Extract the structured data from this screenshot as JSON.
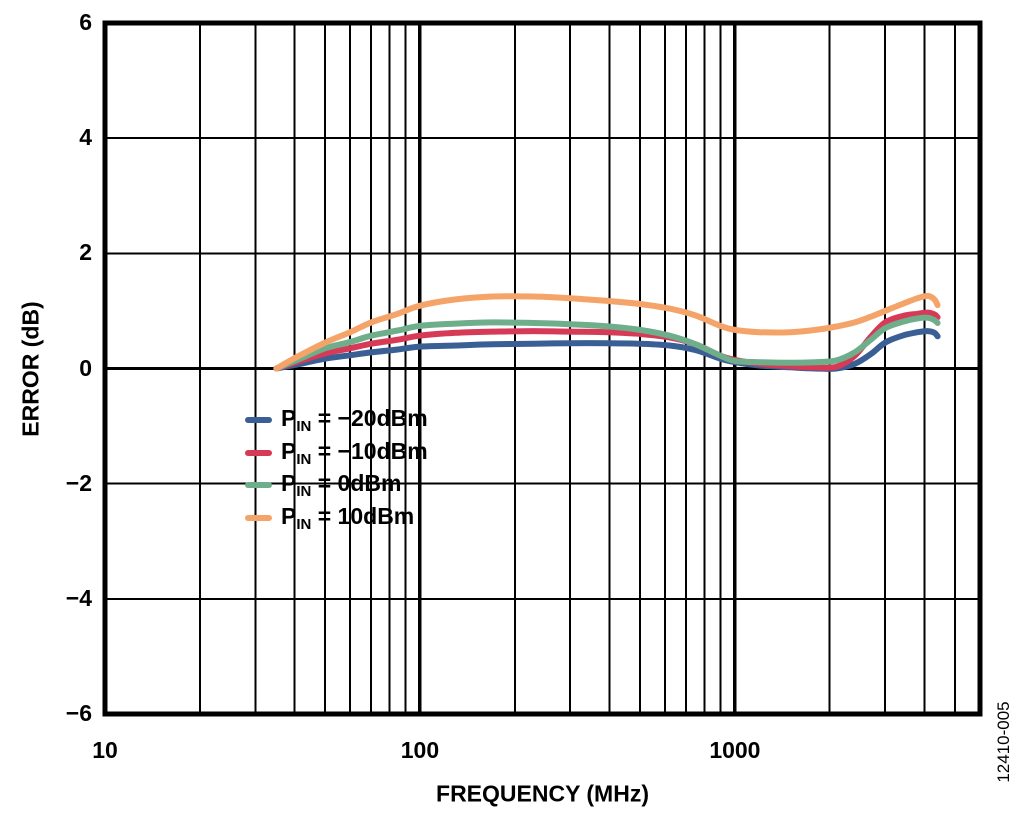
{
  "figure_code": "12410-005",
  "colors": {
    "axis": "#000000",
    "background": "#ffffff"
  },
  "chart_data": {
    "type": "line",
    "title": "",
    "xlabel": "FREQUENCY (MHz)",
    "ylabel": "ERROR (dB)",
    "x_scale": "log",
    "xlim": [
      10,
      6000
    ],
    "ylim": [
      -6,
      6
    ],
    "grid": true,
    "legend_position": "inside lower-left",
    "x_major_ticks": [
      {
        "label": "10",
        "value": 10
      },
      {
        "label": "100",
        "value": 100
      },
      {
        "label": "1000",
        "value": 1000
      }
    ],
    "x_major_gridlines": [
      100,
      1000
    ],
    "x_minor_gridlines": [
      20,
      30,
      40,
      50,
      60,
      70,
      80,
      90,
      200,
      300,
      400,
      500,
      600,
      700,
      800,
      900,
      2000,
      3000,
      4000,
      5000
    ],
    "y_ticks": [
      {
        "label": "6",
        "value": 6
      },
      {
        "label": "4",
        "value": 4
      },
      {
        "label": "2",
        "value": 2
      },
      {
        "label": "0",
        "value": 0
      },
      {
        "label": "−2",
        "value": -2
      },
      {
        "label": "−4",
        "value": -4
      },
      {
        "label": "−6",
        "value": -6
      }
    ],
    "series": [
      {
        "legend": {
          "base": "P",
          "sub": "IN",
          "rest": " = −20dBm"
        },
        "color": "#3A5F94",
        "points": [
          [
            35,
            0
          ],
          [
            40,
            0.06
          ],
          [
            50,
            0.17
          ],
          [
            60,
            0.23
          ],
          [
            70,
            0.28
          ],
          [
            85,
            0.33
          ],
          [
            100,
            0.38
          ],
          [
            130,
            0.4
          ],
          [
            170,
            0.42
          ],
          [
            230,
            0.43
          ],
          [
            300,
            0.44
          ],
          [
            400,
            0.44
          ],
          [
            500,
            0.43
          ],
          [
            620,
            0.4
          ],
          [
            750,
            0.32
          ],
          [
            900,
            0.17
          ],
          [
            1000,
            0.11
          ],
          [
            1200,
            0.05
          ],
          [
            1500,
            0.02
          ],
          [
            1800,
            0.0
          ],
          [
            2100,
            0.0
          ],
          [
            2400,
            0.08
          ],
          [
            2700,
            0.25
          ],
          [
            3000,
            0.45
          ],
          [
            3400,
            0.57
          ],
          [
            3800,
            0.63
          ],
          [
            4100,
            0.65
          ],
          [
            4300,
            0.62
          ],
          [
            4400,
            0.56
          ]
        ]
      },
      {
        "legend": {
          "base": "P",
          "sub": "IN",
          "rest": " = −10dBm"
        },
        "color": "#D63A57",
        "points": [
          [
            35,
            0
          ],
          [
            40,
            0.1
          ],
          [
            50,
            0.26
          ],
          [
            60,
            0.35
          ],
          [
            70,
            0.43
          ],
          [
            85,
            0.5
          ],
          [
            100,
            0.57
          ],
          [
            130,
            0.62
          ],
          [
            170,
            0.64
          ],
          [
            230,
            0.65
          ],
          [
            300,
            0.64
          ],
          [
            400,
            0.63
          ],
          [
            500,
            0.6
          ],
          [
            620,
            0.54
          ],
          [
            750,
            0.42
          ],
          [
            900,
            0.22
          ],
          [
            1000,
            0.15
          ],
          [
            1200,
            0.08
          ],
          [
            1500,
            0.04
          ],
          [
            1800,
            0.02
          ],
          [
            2100,
            0.03
          ],
          [
            2400,
            0.22
          ],
          [
            2700,
            0.55
          ],
          [
            3000,
            0.8
          ],
          [
            3400,
            0.91
          ],
          [
            3800,
            0.95
          ],
          [
            4100,
            0.97
          ],
          [
            4300,
            0.94
          ],
          [
            4400,
            0.89
          ]
        ]
      },
      {
        "legend": {
          "base": "P",
          "sub": "IN",
          "rest": " = 0dBm"
        },
        "color": "#6FAE8B",
        "points": [
          [
            35,
            0
          ],
          [
            40,
            0.13
          ],
          [
            50,
            0.35
          ],
          [
            60,
            0.46
          ],
          [
            70,
            0.57
          ],
          [
            85,
            0.66
          ],
          [
            100,
            0.74
          ],
          [
            130,
            0.78
          ],
          [
            170,
            0.8
          ],
          [
            230,
            0.79
          ],
          [
            300,
            0.77
          ],
          [
            400,
            0.73
          ],
          [
            500,
            0.67
          ],
          [
            620,
            0.57
          ],
          [
            750,
            0.42
          ],
          [
            900,
            0.22
          ],
          [
            1000,
            0.13
          ],
          [
            1200,
            0.11
          ],
          [
            1500,
            0.1
          ],
          [
            1800,
            0.11
          ],
          [
            2100,
            0.14
          ],
          [
            2400,
            0.28
          ],
          [
            2700,
            0.5
          ],
          [
            3000,
            0.7
          ],
          [
            3400,
            0.81
          ],
          [
            3800,
            0.87
          ],
          [
            4100,
            0.88
          ],
          [
            4300,
            0.84
          ],
          [
            4400,
            0.79
          ]
        ]
      },
      {
        "legend": {
          "base": "P",
          "sub": "IN",
          "rest": " = 10dBm"
        },
        "color": "#F5A469",
        "points": [
          [
            35,
            0
          ],
          [
            40,
            0.18
          ],
          [
            50,
            0.45
          ],
          [
            60,
            0.63
          ],
          [
            70,
            0.8
          ],
          [
            85,
            0.95
          ],
          [
            100,
            1.09
          ],
          [
            130,
            1.2
          ],
          [
            170,
            1.25
          ],
          [
            230,
            1.25
          ],
          [
            300,
            1.22
          ],
          [
            400,
            1.17
          ],
          [
            500,
            1.12
          ],
          [
            620,
            1.04
          ],
          [
            750,
            0.92
          ],
          [
            900,
            0.74
          ],
          [
            1000,
            0.67
          ],
          [
            1200,
            0.63
          ],
          [
            1500,
            0.63
          ],
          [
            1800,
            0.67
          ],
          [
            2100,
            0.73
          ],
          [
            2400,
            0.8
          ],
          [
            2700,
            0.9
          ],
          [
            3000,
            1.0
          ],
          [
            3400,
            1.12
          ],
          [
            3800,
            1.22
          ],
          [
            4100,
            1.26
          ],
          [
            4300,
            1.2
          ],
          [
            4400,
            1.1
          ]
        ]
      }
    ]
  }
}
